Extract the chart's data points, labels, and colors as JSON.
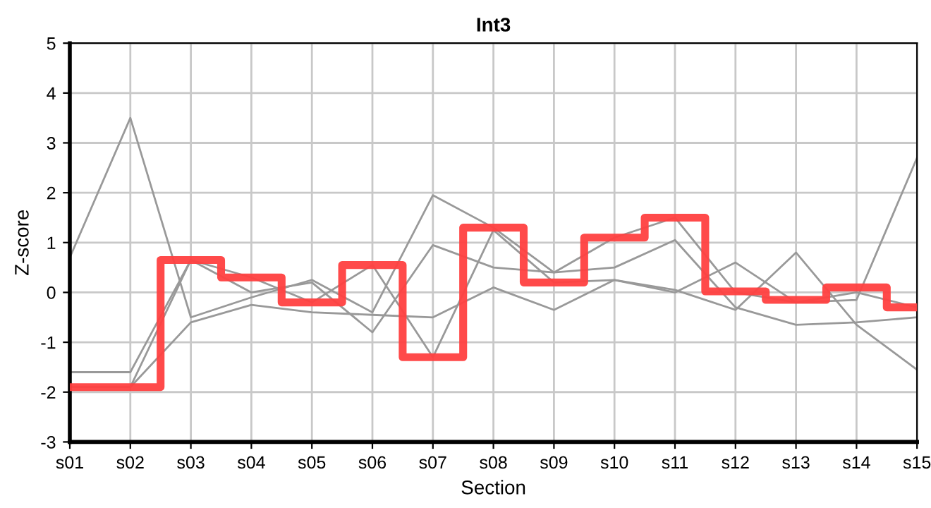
{
  "chart_data": {
    "type": "line",
    "title": "Int3",
    "xlabel": "Section",
    "ylabel": "Z-score",
    "categories": [
      "s01",
      "s02",
      "s03",
      "s04",
      "s05",
      "s06",
      "s07",
      "s08",
      "s09",
      "s10",
      "s11",
      "s12",
      "s13",
      "s14",
      "s15"
    ],
    "ylim": [
      -3,
      5
    ],
    "yticks": [
      -3,
      -2,
      -1,
      0,
      1,
      2,
      3,
      4,
      5
    ],
    "grid": true,
    "legend": false,
    "series": [
      {
        "color": "#999999",
        "values": [
          0.7,
          3.5,
          -0.5,
          -0.1,
          0.25,
          -0.4,
          1.95,
          1.3,
          0.4,
          1.1,
          1.5,
          0.0,
          -0.2,
          -0.15,
          2.7
        ]
      },
      {
        "color": "#999999",
        "values": [
          -1.6,
          -1.6,
          0.65,
          0.3,
          -0.2,
          0.55,
          -1.3,
          1.25,
          0.2,
          0.25,
          0.05,
          -0.35,
          0.8,
          -0.65,
          -1.55
        ]
      },
      {
        "color": "#999999",
        "values": [
          -1.9,
          -1.9,
          0.65,
          0.0,
          0.2,
          -0.8,
          0.95,
          0.5,
          0.4,
          0.5,
          1.05,
          -0.3,
          -0.65,
          -0.6,
          -0.5
        ]
      },
      {
        "color": "#999999",
        "values": [
          -1.9,
          -1.9,
          -0.6,
          -0.25,
          -0.4,
          -0.45,
          -0.5,
          0.1,
          -0.35,
          0.25,
          0.0,
          0.6,
          -0.2,
          0.0,
          -0.3
        ]
      },
      {
        "type": "step",
        "color": "#ff4040",
        "values": [
          -1.9,
          -1.9,
          0.65,
          0.3,
          -0.2,
          0.55,
          -1.3,
          1.3,
          0.2,
          1.1,
          1.5,
          0.02,
          -0.15,
          0.1,
          -0.3
        ]
      }
    ]
  }
}
